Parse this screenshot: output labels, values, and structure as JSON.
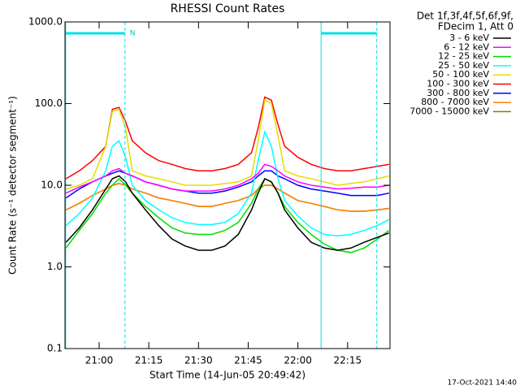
{
  "chart_data": {
    "type": "line",
    "title": "RHESSI Count Rates",
    "xlabel": "Start Time (14-Jun-05 20:49:42)",
    "ylabel": "Count Rate (s⁻¹ detector segment⁻¹)",
    "footer": "17-Oct-2021 14:40",
    "legend_title": [
      "Det 1f,3f,4f,5f,6f,9f,",
      "FDecim 1, Att 0"
    ],
    "log_y": true,
    "xlim": [
      49.7,
      147.8
    ],
    "xticks": [
      {
        "value": 60,
        "label": "21:00"
      },
      {
        "value": 75,
        "label": "21:15"
      },
      {
        "value": 90,
        "label": "21:30"
      },
      {
        "value": 105,
        "label": "21:45"
      },
      {
        "value": 120,
        "label": "22:00"
      },
      {
        "value": 135,
        "label": "22:15"
      }
    ],
    "ylim": [
      0.1,
      1000
    ],
    "yticks": [
      {
        "value": 0.1,
        "label": "0.1"
      },
      {
        "value": 1,
        "label": "1.0"
      },
      {
        "value": 10,
        "label": "10.0"
      },
      {
        "value": 100,
        "label": "100.0"
      },
      {
        "value": 1000,
        "label": "1000.0"
      }
    ],
    "intervals": [
      {
        "start": 49.9,
        "end": 67.8,
        "label": "N"
      },
      {
        "start": 127.0,
        "end": 143.8
      }
    ],
    "x": [
      50,
      54,
      58,
      62,
      64,
      66,
      68,
      70,
      74,
      78,
      82,
      86,
      90,
      94,
      98,
      102,
      106,
      108,
      110,
      112,
      114,
      116,
      120,
      124,
      128,
      132,
      136,
      140,
      144,
      147.5
    ],
    "series": [
      {
        "name": "3 - 6 keV",
        "color": "#000000",
        "values": [
          2.0,
          3.0,
          5.0,
          9,
          12,
          13,
          11,
          8,
          5,
          3.2,
          2.2,
          1.8,
          1.6,
          1.6,
          1.8,
          2.5,
          5,
          8,
          12,
          11,
          8,
          5,
          3,
          2,
          1.7,
          1.6,
          1.7,
          2.0,
          2.3,
          2.6
        ]
      },
      {
        "name": "6 - 12 keV",
        "color": "#ff00ff",
        "values": [
          8,
          9.5,
          11,
          13,
          15,
          16,
          14,
          13,
          11,
          10,
          9,
          8.5,
          8.5,
          8.5,
          9,
          10,
          12,
          14,
          18,
          17,
          15,
          13,
          11,
          10,
          9.5,
          9,
          9.2,
          9.5,
          9.5,
          10
        ]
      },
      {
        "name": "12 - 25 keV",
        "color": "#00dd00",
        "values": [
          1.7,
          2.8,
          4.5,
          8,
          10,
          12,
          10,
          8,
          5.5,
          4,
          3,
          2.6,
          2.5,
          2.5,
          2.8,
          3.5,
          6,
          9,
          12,
          11,
          8,
          5.5,
          3.5,
          2.5,
          1.9,
          1.6,
          1.5,
          1.7,
          2.2,
          2.8
        ]
      },
      {
        "name": "25 - 50 keV",
        "color": "#00ffff",
        "values": [
          3.2,
          4.5,
          7,
          15,
          30,
          35,
          22,
          10,
          6.5,
          5,
          4,
          3.5,
          3.3,
          3.3,
          3.5,
          4.5,
          8,
          20,
          45,
          30,
          12,
          6.5,
          4.2,
          3,
          2.5,
          2.4,
          2.5,
          2.8,
          3.2,
          3.8
        ]
      },
      {
        "name": "50 - 100 keV",
        "color": "#e0e000",
        "values": [
          9,
          10,
          12,
          30,
          80,
          85,
          50,
          15,
          13,
          12,
          11,
          10,
          10,
          10,
          10.5,
          11,
          13,
          35,
          110,
          100,
          40,
          15,
          13,
          12,
          11,
          10,
          10.5,
          11,
          12,
          13
        ]
      },
      {
        "name": "100 - 300 keV",
        "color": "#ff0000",
        "values": [
          12,
          15,
          20,
          30,
          85,
          90,
          60,
          35,
          25,
          20,
          18,
          16,
          15,
          15,
          16,
          18,
          25,
          50,
          120,
          110,
          55,
          30,
          22,
          18,
          16,
          15,
          15,
          16,
          17,
          18
        ]
      },
      {
        "name": "300 - 800 keV",
        "color": "#0000ff",
        "values": [
          7,
          9,
          11,
          13,
          14,
          15,
          14,
          13,
          11,
          10,
          9,
          8.5,
          8,
          8,
          8.5,
          9.5,
          11,
          13,
          15,
          15,
          13,
          12,
          10,
          9,
          8.5,
          8,
          7.5,
          7.5,
          7.5,
          8
        ]
      },
      {
        "name": "800 - 7000 keV",
        "color": "#ff8000",
        "values": [
          5,
          6,
          7.5,
          9,
          10,
          10.5,
          10,
          9,
          8,
          7,
          6.5,
          6,
          5.5,
          5.5,
          6,
          6.5,
          7.5,
          9,
          10,
          10,
          9,
          8,
          6.5,
          6,
          5.5,
          5,
          4.8,
          4.8,
          5,
          5.2
        ]
      },
      {
        "name": "7000 - 15000 keV",
        "color": "#808000",
        "values": [
          5,
          6,
          7.5,
          9,
          10,
          10.5,
          10,
          9,
          8,
          7,
          6.5,
          6,
          5.5,
          5.5,
          6,
          6.5,
          7.5,
          9,
          10,
          10,
          9,
          8,
          6.5,
          6,
          5.5,
          5,
          4.8,
          4.8,
          5,
          5.2
        ]
      }
    ]
  }
}
